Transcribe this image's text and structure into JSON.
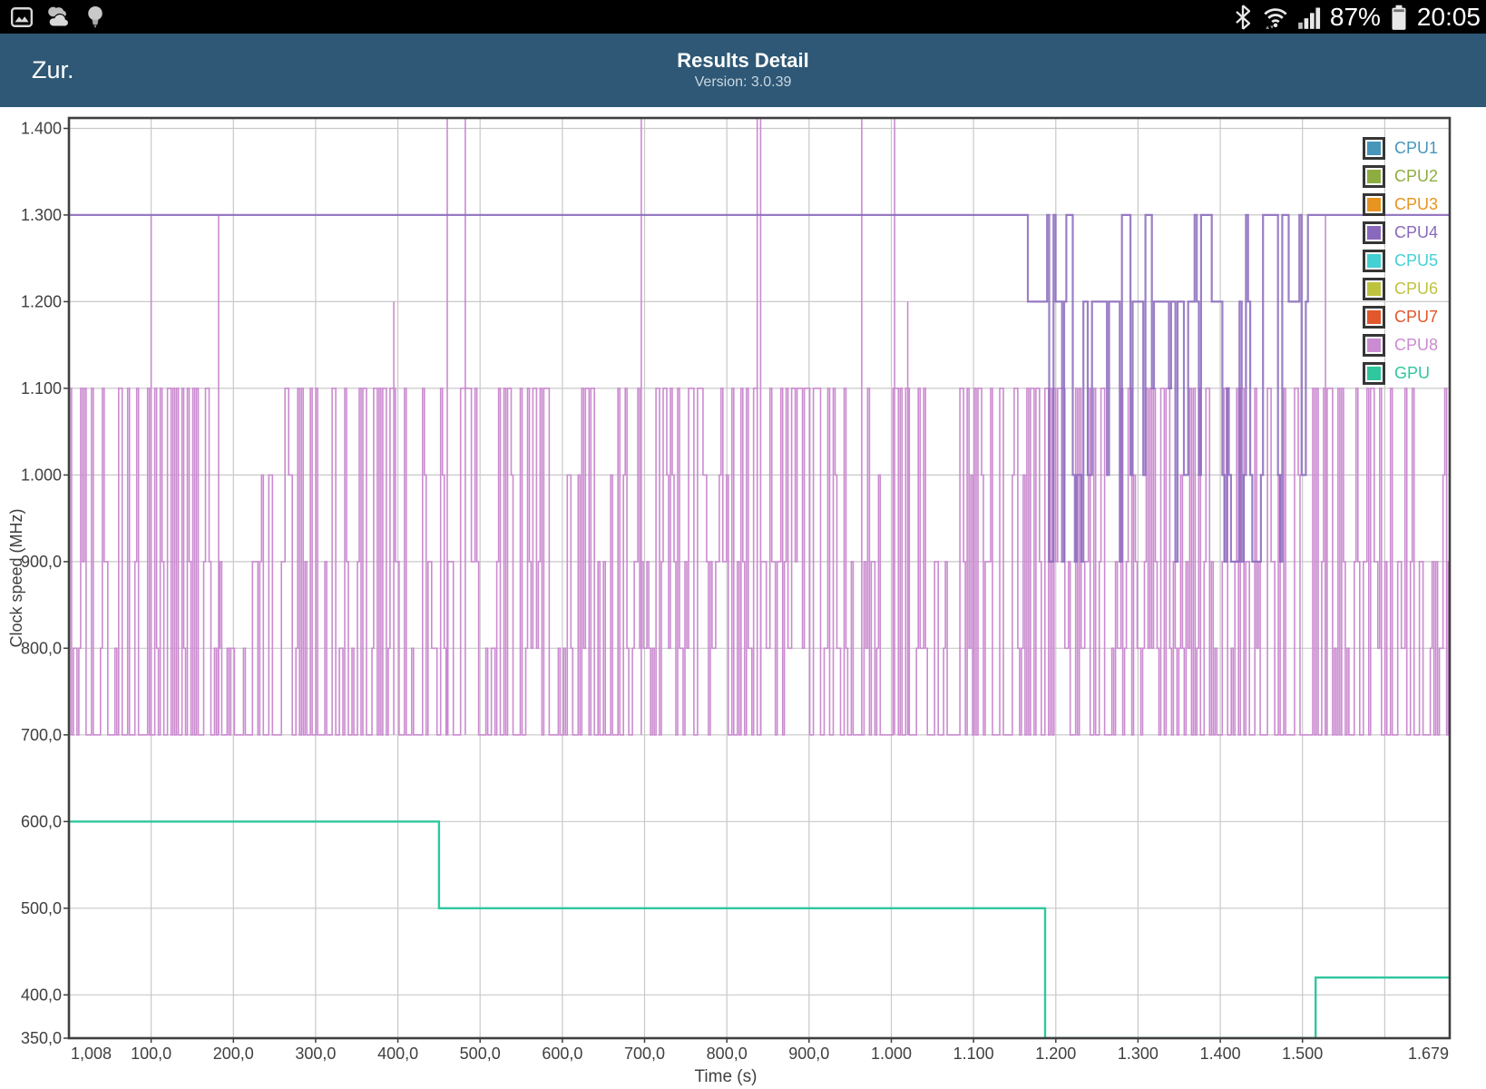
{
  "status_bar": {
    "time": "20:05",
    "battery_percent": "87%",
    "icons_left": [
      "gallery-icon",
      "cloud-icon",
      "lightbulb-icon"
    ],
    "icons_right": [
      "bluetooth-icon",
      "wifi-icon",
      "cellular-signal-icon",
      "battery-icon"
    ]
  },
  "header": {
    "back_label": "Zur.",
    "title": "Results Detail",
    "subtitle": "Version: 3.0.39",
    "background_color": "#2e5875"
  },
  "chart_data": {
    "type": "line",
    "title": "",
    "xlabel": "Time (s)",
    "ylabel": "Clock speed (MHz)",
    "x_range": [
      0,
      1679
    ],
    "y_range": [
      350,
      1412
    ],
    "grid": true,
    "grid_color": "#c9c9c9",
    "axis_color": "#3f3f3f",
    "legend_position": "top-right",
    "x_ticks": [
      {
        "label": "1,008",
        "t": 1.008
      },
      {
        "label": "100,0",
        "t": 100
      },
      {
        "label": "200,0",
        "t": 200
      },
      {
        "label": "300,0",
        "t": 300
      },
      {
        "label": "400,0",
        "t": 400
      },
      {
        "label": "500,0",
        "t": 500
      },
      {
        "label": "600,0",
        "t": 600
      },
      {
        "label": "700,0",
        "t": 700
      },
      {
        "label": "800,0",
        "t": 800
      },
      {
        "label": "900,0",
        "t": 900
      },
      {
        "label": "1.000",
        "t": 1000
      },
      {
        "label": "1.100",
        "t": 1100
      },
      {
        "label": "1.200",
        "t": 1200
      },
      {
        "label": "1.300",
        "t": 1300
      },
      {
        "label": "1.400",
        "t": 1400
      },
      {
        "label": "1.500",
        "t": 1500
      },
      {
        "label": "1.679",
        "t": 1679
      }
    ],
    "x_gridlines": [
      100,
      200,
      300,
      400,
      500,
      600,
      700,
      800,
      900,
      1000,
      1100,
      1200,
      1300,
      1400,
      1500,
      1600
    ],
    "y_ticks": [
      {
        "label": "350,0",
        "v": 350
      },
      {
        "label": "400,0",
        "v": 400
      },
      {
        "label": "500,0",
        "v": 500
      },
      {
        "label": "600,0",
        "v": 600
      },
      {
        "label": "700,0",
        "v": 700
      },
      {
        "label": "800,0",
        "v": 800
      },
      {
        "label": "900,0",
        "v": 900
      },
      {
        "label": "1.000",
        "v": 1000
      },
      {
        "label": "1.100",
        "v": 1100
      },
      {
        "label": "1.200",
        "v": 1200
      },
      {
        "label": "1.300",
        "v": 1300
      },
      {
        "label": "1.400",
        "v": 1400
      }
    ],
    "y_gridlines": [
      400,
      500,
      600,
      700,
      800,
      900,
      1000,
      1100,
      1200,
      1300,
      1400
    ],
    "series": [
      {
        "name": "CPU1",
        "color": "#4796b9",
        "visible": false,
        "note": "overlapped, not visible"
      },
      {
        "name": "CPU2",
        "color": "#8ead40",
        "visible": false,
        "note": "overlapped, not visible"
      },
      {
        "name": "CPU3",
        "color": "#e89420",
        "visible": false,
        "note": "overlapped, not visible"
      },
      {
        "name": "CPU4",
        "color": "#8a69bd",
        "visible": true,
        "opacity": 0.85,
        "width": 2.2,
        "pre": [
          1,
          1166,
          1300
        ],
        "post": [
          1516,
          1679,
          1300
        ],
        "random": {
          "from": 1166,
          "to": 1516,
          "step": 2.6,
          "seed": 77,
          "phases": [
            {
              "from": 1166,
              "to": 1280,
              "levels": {
                "1300": 0.15,
                "1200": 0.45,
                "1100": 0.05,
                "1000": 0.15,
                "900": 0.2
              }
            },
            {
              "from": 1280,
              "to": 1395,
              "levels": {
                "1300": 0.3,
                "1200": 0.3,
                "1100": 0.08,
                "1000": 0.12,
                "900": 0.2
              }
            },
            {
              "from": 1395,
              "to": 1450,
              "levels": {
                "1300": 0.1,
                "1200": 0.15,
                "1100": 0.1,
                "1000": 0.3,
                "900": 0.35
              }
            },
            {
              "from": 1450,
              "to": 1460,
              "levels": {
                "1300": 0.35,
                "1200": 0.35,
                "1000": 0.15,
                "900": 0.15
              }
            },
            {
              "from": 1460,
              "to": 1490,
              "levels": {
                "1300": 0.1,
                "1200": 0.15,
                "1100": 0.1,
                "1000": 0.3,
                "900": 0.35
              }
            },
            {
              "from": 1490,
              "to": 1516,
              "levels": {
                "1300": 0.3,
                "1200": 0.3,
                "1000": 0.2,
                "900": 0.2
              }
            }
          ]
        }
      },
      {
        "name": "CPU5",
        "color": "#43d1d3",
        "visible": false,
        "note": "overlapped, not visible"
      },
      {
        "name": "CPU6",
        "color": "#bec33e",
        "visible": false,
        "note": "overlapped, not visible"
      },
      {
        "name": "CPU7",
        "color": "#e2572b",
        "visible": false,
        "note": "overlapped, not visible"
      },
      {
        "name": "CPU8",
        "color": "#cb8bd0",
        "visible": true,
        "opacity": 1,
        "width": 1.6,
        "oscillation": {
          "from": 1,
          "to": 1679,
          "step": 2.2,
          "seed": 1234,
          "baseline": 700,
          "phases": [
            {
              "to": 460,
              "p": 0.45
            },
            {
              "to": 1679,
              "p": 0.58
            }
          ],
          "levels": {
            "1100": 0.42,
            "1000": 0.12,
            "900": 0.26,
            "800": 0.2
          },
          "hold_chance": 0.18
        },
        "spikes": [
          {
            "t": 100,
            "v": 1300
          },
          {
            "t": 182,
            "v": 1300
          },
          {
            "t": 395,
            "v": 1200
          },
          {
            "t": 460,
            "v": 1500
          },
          {
            "t": 482,
            "v": 1500
          },
          {
            "t": 696,
            "v": 1500
          },
          {
            "t": 837,
            "v": 1500
          },
          {
            "t": 841,
            "v": 1500
          },
          {
            "t": 964,
            "v": 1500
          },
          {
            "t": 1004,
            "v": 1500
          },
          {
            "t": 1020,
            "v": 1200
          },
          {
            "t": 1528,
            "v": 1300
          }
        ],
        "note": "values above 1400 are clipped at chart top"
      },
      {
        "name": "GPU",
        "color": "#2fc79e",
        "visible": true,
        "opacity": 1,
        "width": 2.4,
        "steps": [
          [
            1,
            600
          ],
          [
            450,
            500
          ],
          [
            1187,
            350
          ],
          [
            1516,
            420
          ]
        ],
        "end": 1679,
        "note": "drops to chart bottom (clipped) between 1187s and 1516s"
      }
    ]
  }
}
